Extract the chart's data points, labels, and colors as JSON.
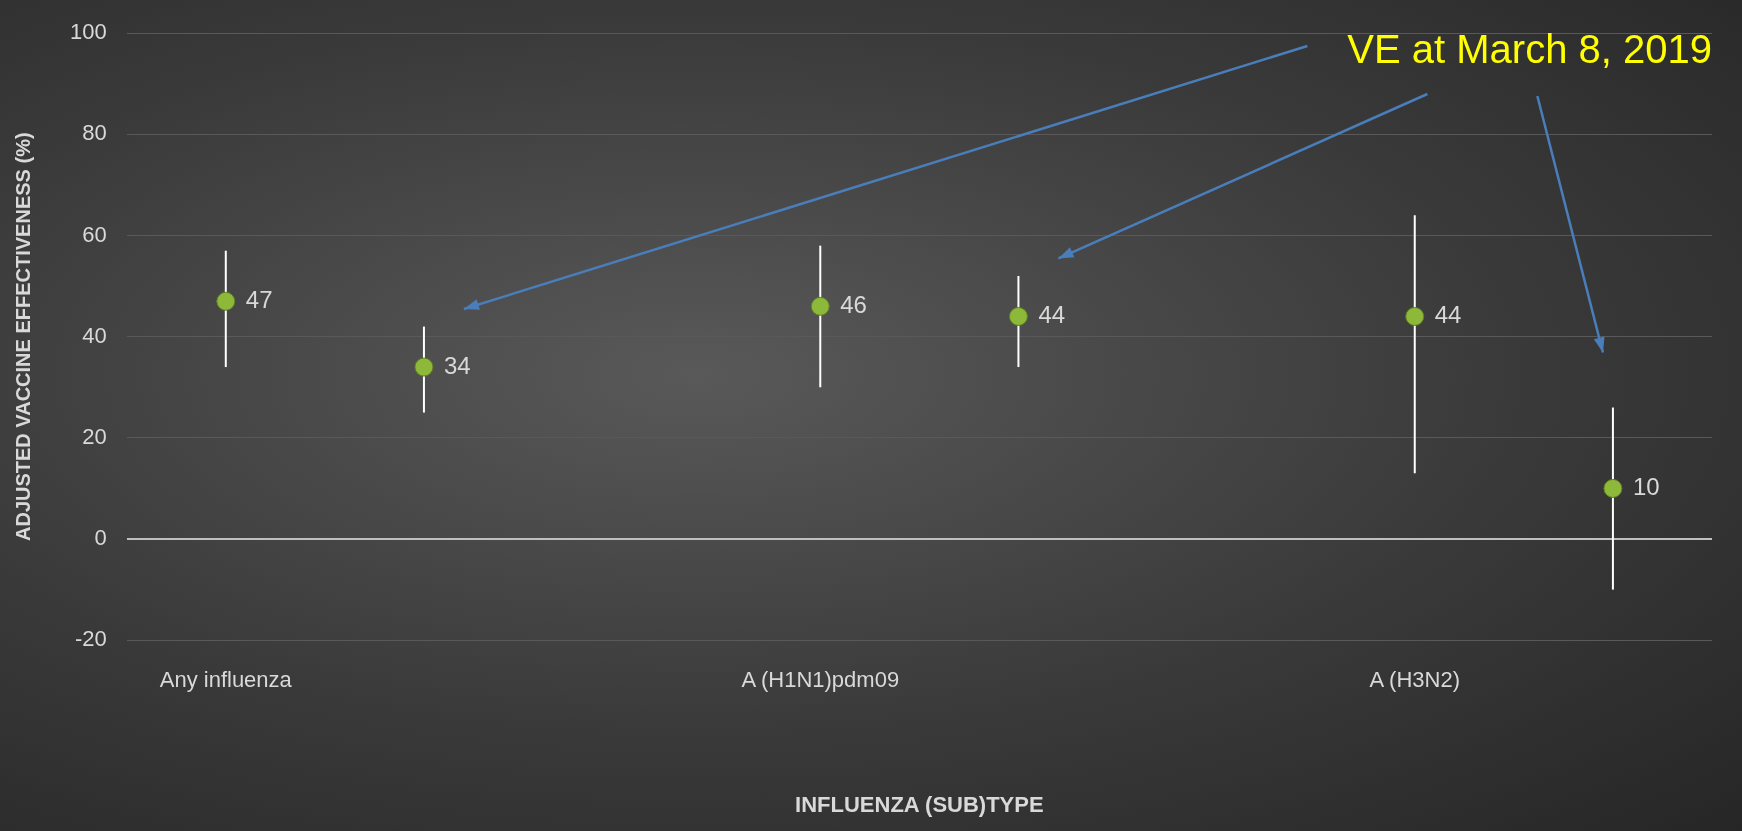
{
  "chart_data": {
    "type": "scatter",
    "xlabel": "INFLUENZA (SUB)TYPE",
    "ylabel": "ADJUSTED VACCINE EFFECTIVENESS (%)",
    "categories": [
      "Any influenza",
      null,
      null,
      "A (H1N1)pdm09",
      null,
      null,
      "A (H3N2)",
      null
    ],
    "series": [
      {
        "color": "#8db83a",
        "values": [
          47,
          34,
          null,
          46,
          44,
          null,
          44,
          10
        ],
        "errors": [
          [
            34,
            57
          ],
          [
            25,
            42
          ],
          null,
          [
            30,
            58
          ],
          [
            34,
            52
          ],
          null,
          [
            13,
            64
          ],
          [
            -10,
            26
          ]
        ]
      }
    ],
    "ylim": [
      -20,
      100
    ],
    "yticks": [
      -20,
      0,
      20,
      40,
      60,
      80,
      100
    ],
    "grid": "y",
    "marker": "circle",
    "data_labels": true,
    "legend": false,
    "annotations": [
      "VE at March 8, 2019"
    ]
  }
}
